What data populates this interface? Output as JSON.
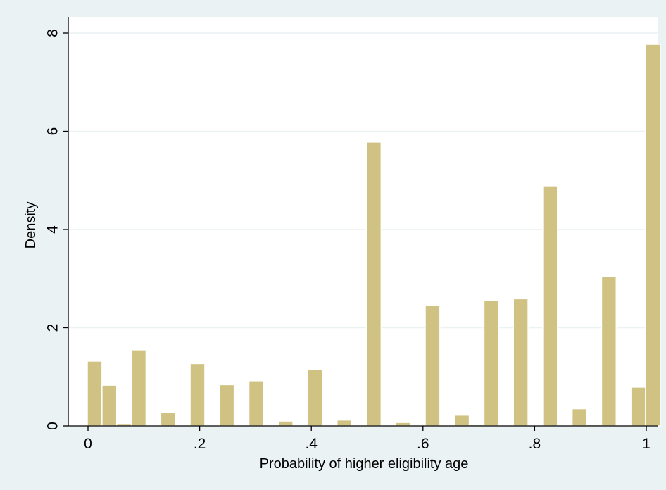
{
  "chart_data": {
    "type": "bar",
    "xlabel": "Probability of higher eligibility age",
    "ylabel": "Density",
    "xlim": [
      0,
      1
    ],
    "ylim": [
      0,
      8
    ],
    "grid": true,
    "x_ticks": [
      {
        "value": 0,
        "label": "0"
      },
      {
        "value": 0.2,
        "label": ".2"
      },
      {
        "value": 0.4,
        "label": ".4"
      },
      {
        "value": 0.6,
        "label": ".6"
      },
      {
        "value": 0.8,
        "label": ".8"
      },
      {
        "value": 1,
        "label": "1"
      }
    ],
    "y_ticks": [
      {
        "value": 0,
        "label": "0"
      },
      {
        "value": 2,
        "label": "2"
      },
      {
        "value": 4,
        "label": "4"
      },
      {
        "value": 6,
        "label": "6"
      },
      {
        "value": 8,
        "label": "8"
      }
    ],
    "bin_width": 0.0263,
    "bars": [
      {
        "x0": 0.0,
        "value": 1.32
      },
      {
        "x0": 0.0263,
        "value": 0.83
      },
      {
        "x0": 0.0526,
        "value": 0.05
      },
      {
        "x0": 0.0789,
        "value": 1.55
      },
      {
        "x0": 0.1053,
        "value": 0.01
      },
      {
        "x0": 0.1316,
        "value": 0.28
      },
      {
        "x0": 0.1579,
        "value": 0.0
      },
      {
        "x0": 0.1842,
        "value": 1.27
      },
      {
        "x0": 0.2105,
        "value": 0.0
      },
      {
        "x0": 0.2368,
        "value": 0.84
      },
      {
        "x0": 0.2632,
        "value": 0.0
      },
      {
        "x0": 0.2895,
        "value": 0.92
      },
      {
        "x0": 0.3158,
        "value": 0.01
      },
      {
        "x0": 0.3421,
        "value": 0.1
      },
      {
        "x0": 0.3684,
        "value": 0.0
      },
      {
        "x0": 0.3947,
        "value": 1.15
      },
      {
        "x0": 0.4211,
        "value": 0.0
      },
      {
        "x0": 0.4474,
        "value": 0.12
      },
      {
        "x0": 0.4737,
        "value": 0.0
      },
      {
        "x0": 0.5,
        "value": 5.78
      },
      {
        "x0": 0.5263,
        "value": 0.0
      },
      {
        "x0": 0.5526,
        "value": 0.07
      },
      {
        "x0": 0.5789,
        "value": 0.0
      },
      {
        "x0": 0.6053,
        "value": 2.45
      },
      {
        "x0": 0.6316,
        "value": 0.0
      },
      {
        "x0": 0.6579,
        "value": 0.22
      },
      {
        "x0": 0.6842,
        "value": 0.03
      },
      {
        "x0": 0.7105,
        "value": 2.56
      },
      {
        "x0": 0.7368,
        "value": 0.0
      },
      {
        "x0": 0.7632,
        "value": 2.59
      },
      {
        "x0": 0.7895,
        "value": 0.0
      },
      {
        "x0": 0.8158,
        "value": 4.89
      },
      {
        "x0": 0.8421,
        "value": 0.0
      },
      {
        "x0": 0.8684,
        "value": 0.35
      },
      {
        "x0": 0.8947,
        "value": 0.03
      },
      {
        "x0": 0.9211,
        "value": 3.05
      },
      {
        "x0": 0.9474,
        "value": 0.0
      },
      {
        "x0": 0.9737,
        "value": 0.79
      },
      {
        "x0": 1.0,
        "value": 7.77
      }
    ]
  }
}
